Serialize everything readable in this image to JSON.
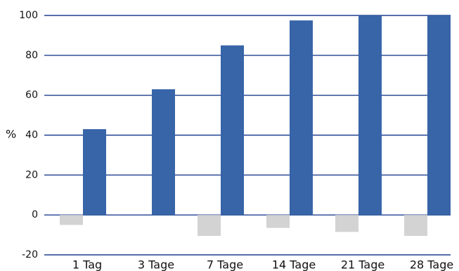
{
  "chart_data": {
    "type": "bar",
    "categories": [
      "1 Tag",
      "3 Tage",
      "7 Tage",
      "14 Tage",
      "21 Tage",
      "28 Tage"
    ],
    "series": [
      {
        "values": [
          -5,
          0,
          -10.5,
          -6.5,
          -8.5,
          -10.5
        ],
        "color": "#d3d3d3"
      },
      {
        "values": [
          43,
          63,
          85,
          97.5,
          100,
          100
        ],
        "color": "#3864a8"
      }
    ],
    "ylabel": "%",
    "ylim": [
      -20,
      100
    ],
    "yticks": [
      -20,
      0,
      20,
      40,
      60,
      80,
      100
    ],
    "grid": true,
    "gridline_color": "#1f3f8f"
  }
}
